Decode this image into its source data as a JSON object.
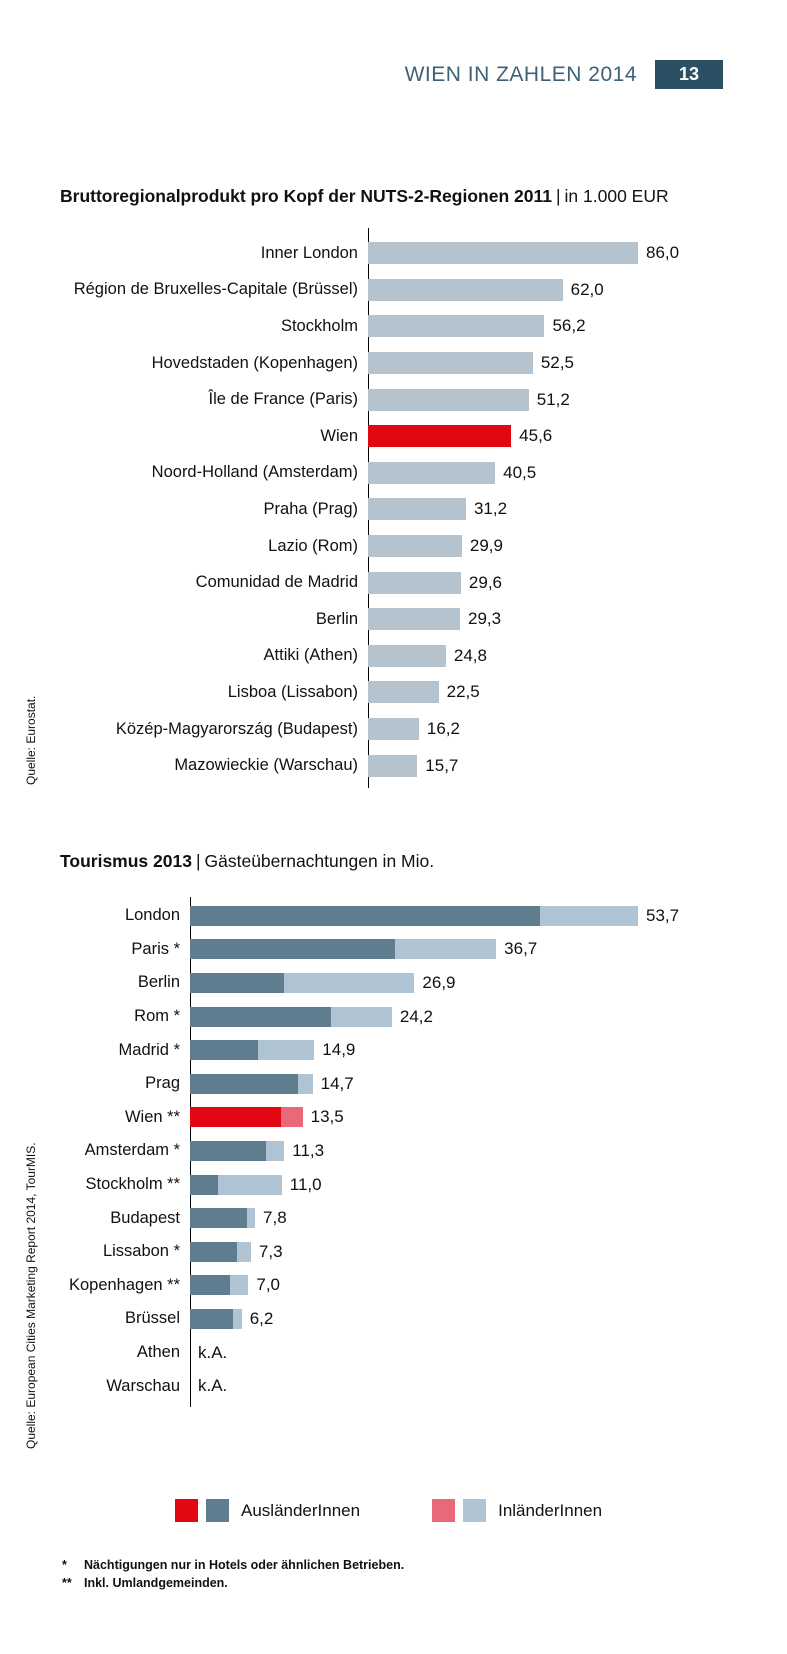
{
  "header": {
    "title": "WIEN IN ZAHLEN 2014",
    "page_number": "13"
  },
  "colors": {
    "accent_red": "#e30613",
    "pink": "#e8697a",
    "bar_light_1": "#b5c3cf",
    "dark_slate": "#5e7d8e",
    "light_slate": "#b0c3d2",
    "header_text": "#3d6278",
    "header_box": "#2b5064"
  },
  "chart_data": [
    {
      "type": "bar",
      "title": "Bruttoregionalprodukt pro Kopf der NUTS-2-Regionen 2011",
      "separator": "|",
      "subtitle": "in 1.000 EUR",
      "source": "Quelle: Eurostat.",
      "xlim": [
        0,
        88
      ],
      "grid": false,
      "highlight_index": 5,
      "categories": [
        "Inner London",
        "Région de Bruxelles-Capitale (Brüssel)",
        "Stockholm",
        "Hovedstaden (Kopenhagen)",
        "Île de France (Paris)",
        "Wien",
        "Noord-Holland (Amsterdam)",
        "Praha (Prag)",
        "Lazio (Rom)",
        "Comunidad de Madrid",
        "Berlin",
        "Attiki (Athen)",
        "Lisboa (Lissabon)",
        "Közép-Magyarország (Budapest)",
        "Mazowieckie (Warschau)"
      ],
      "values": [
        86.0,
        62.0,
        56.2,
        52.5,
        51.2,
        45.6,
        40.5,
        31.2,
        29.9,
        29.6,
        29.3,
        24.8,
        22.5,
        16.2,
        15.7
      ],
      "value_labels": [
        "86,0",
        "62,0",
        "56,2",
        "52,5",
        "51,2",
        "45,6",
        "40,5",
        "31,2",
        "29,9",
        "29,6",
        "29,3",
        "24,8",
        "22,5",
        "16,2",
        "15,7"
      ]
    },
    {
      "type": "bar-stacked",
      "title": "Tourismus 2013",
      "separator": "|",
      "subtitle": "Gästeübernachtungen in Mio.",
      "source": "Quelle: European Cities Marketing Report 2014, TourMIS.",
      "xlim": [
        0,
        55
      ],
      "grid": false,
      "highlight_index": 6,
      "categories": [
        "London",
        "Paris *",
        "Berlin",
        "Rom *",
        "Madrid *",
        "Prag",
        "Wien **",
        "Amsterdam *",
        "Stockholm **",
        "Budapest",
        "Lissabon *",
        "Kopenhagen **",
        "Brüssel",
        "Athen",
        "Warschau"
      ],
      "series": [
        {
          "name": "AusländerInnen",
          "values": [
            42.0,
            24.6,
            11.3,
            16.9,
            8.1,
            12.9,
            10.9,
            9.1,
            3.4,
            6.8,
            5.6,
            4.8,
            5.2,
            null,
            null
          ]
        },
        {
          "name": "InländerInnen",
          "values": [
            11.7,
            12.1,
            15.6,
            7.3,
            6.8,
            1.8,
            2.6,
            2.2,
            7.6,
            1.0,
            1.7,
            2.2,
            1.0,
            null,
            null
          ]
        }
      ],
      "totals": [
        53.7,
        36.7,
        26.9,
        24.2,
        14.9,
        14.7,
        13.5,
        11.3,
        11.0,
        7.8,
        7.3,
        7.0,
        6.2,
        null,
        null
      ],
      "total_labels": [
        "53,7",
        "36,7",
        "26,9",
        "24,2",
        "14,9",
        "14,7",
        "13,5",
        "11,3",
        "11,0",
        "7,8",
        "7,3",
        "7,0",
        "6,2",
        "k.A.",
        "k.A."
      ],
      "legend": [
        {
          "label": "AusländerInnen",
          "swatches": [
            "accent_red",
            "dark_slate"
          ]
        },
        {
          "label": "InländerInnen",
          "swatches": [
            "pink",
            "light_slate"
          ]
        }
      ]
    }
  ],
  "footnotes": [
    {
      "marker": "*",
      "text": "Nächtigungen nur in Hotels oder ähnlichen Betrieben."
    },
    {
      "marker": "**",
      "text": "Inkl. Umlandgemeinden."
    }
  ]
}
